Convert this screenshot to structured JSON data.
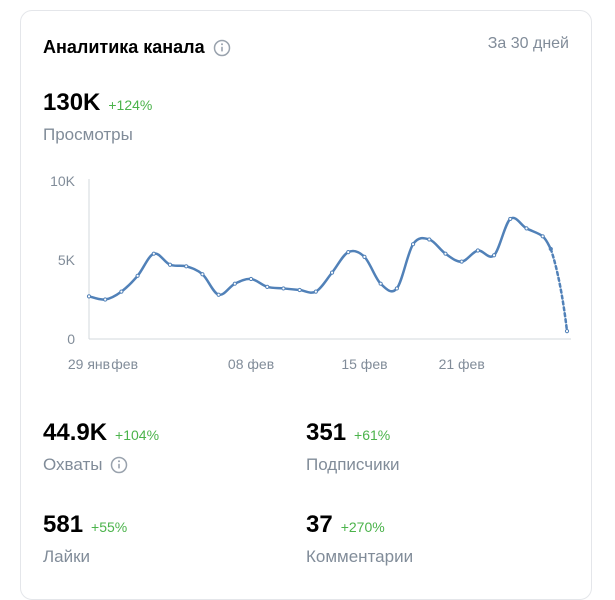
{
  "header": {
    "title": "Аналитика канала",
    "period": "За 30 дней"
  },
  "views": {
    "value": "130K",
    "delta": "+124%",
    "label": "Просмотры"
  },
  "chart_data": {
    "type": "line",
    "ylim": [
      0,
      10000
    ],
    "y_ticks": [
      {
        "value": 0,
        "label": "0"
      },
      {
        "value": 5000,
        "label": "5K"
      },
      {
        "value": 10000,
        "label": "10K"
      }
    ],
    "x_ticks": [
      {
        "day": 0,
        "label": "29 янв"
      },
      {
        "day": 2.2,
        "label": "фев"
      },
      {
        "day": 10,
        "label": "08 фев"
      },
      {
        "day": 17,
        "label": "15 фев"
      },
      {
        "day": 23,
        "label": "21 фев"
      }
    ],
    "series": [
      {
        "values": [
          {
            "x": 0,
            "y": 2700
          },
          {
            "x": 1,
            "y": 2500
          },
          {
            "x": 2,
            "y": 3000
          },
          {
            "x": 3,
            "y": 4000
          },
          {
            "x": 4,
            "y": 5400
          },
          {
            "x": 5,
            "y": 4700
          },
          {
            "x": 6,
            "y": 4600
          },
          {
            "x": 7,
            "y": 4100
          },
          {
            "x": 8,
            "y": 2800
          },
          {
            "x": 9,
            "y": 3500
          },
          {
            "x": 10,
            "y": 3800
          },
          {
            "x": 11,
            "y": 3300
          },
          {
            "x": 12,
            "y": 3200
          },
          {
            "x": 13,
            "y": 3100
          },
          {
            "x": 14,
            "y": 3000
          },
          {
            "x": 15,
            "y": 4200
          },
          {
            "x": 16,
            "y": 5500
          },
          {
            "x": 17,
            "y": 5200
          },
          {
            "x": 18,
            "y": 3500
          },
          {
            "x": 19,
            "y": 3200
          },
          {
            "x": 20,
            "y": 6000
          },
          {
            "x": 21,
            "y": 6300
          },
          {
            "x": 22,
            "y": 5400
          },
          {
            "x": 23,
            "y": 4900
          },
          {
            "x": 24,
            "y": 5600
          },
          {
            "x": 25,
            "y": 5300
          },
          {
            "x": 26,
            "y": 7600
          },
          {
            "x": 27,
            "y": 7000
          },
          {
            "x": 28,
            "y": 6500
          },
          {
            "x": 28.5,
            "y": 5700
          }
        ]
      },
      {
        "style": "dashed",
        "values": [
          {
            "x": 28.5,
            "y": 5700
          },
          {
            "x": 29.5,
            "y": 500
          }
        ]
      }
    ],
    "colors": {
      "line": "#5181b8",
      "axis": "#d3d9de",
      "tick_text": "#818c99"
    }
  },
  "stats": [
    {
      "id": "reach",
      "value": "44.9K",
      "delta": "+104%",
      "label": "Охваты",
      "has_info": true
    },
    {
      "id": "subscribers",
      "value": "351",
      "delta": "+61%",
      "label": "Подписчики",
      "has_info": false
    },
    {
      "id": "likes",
      "value": "581",
      "delta": "+55%",
      "label": "Лайки",
      "has_info": false
    },
    {
      "id": "comments",
      "value": "37",
      "delta": "+270%",
      "label": "Комментарии",
      "has_info": false
    }
  ],
  "icons": {
    "info": "info-circle-icon"
  },
  "colors": {
    "positive": "#4bb34b",
    "secondary_text": "#818c99",
    "border": "#e4e6ea"
  }
}
